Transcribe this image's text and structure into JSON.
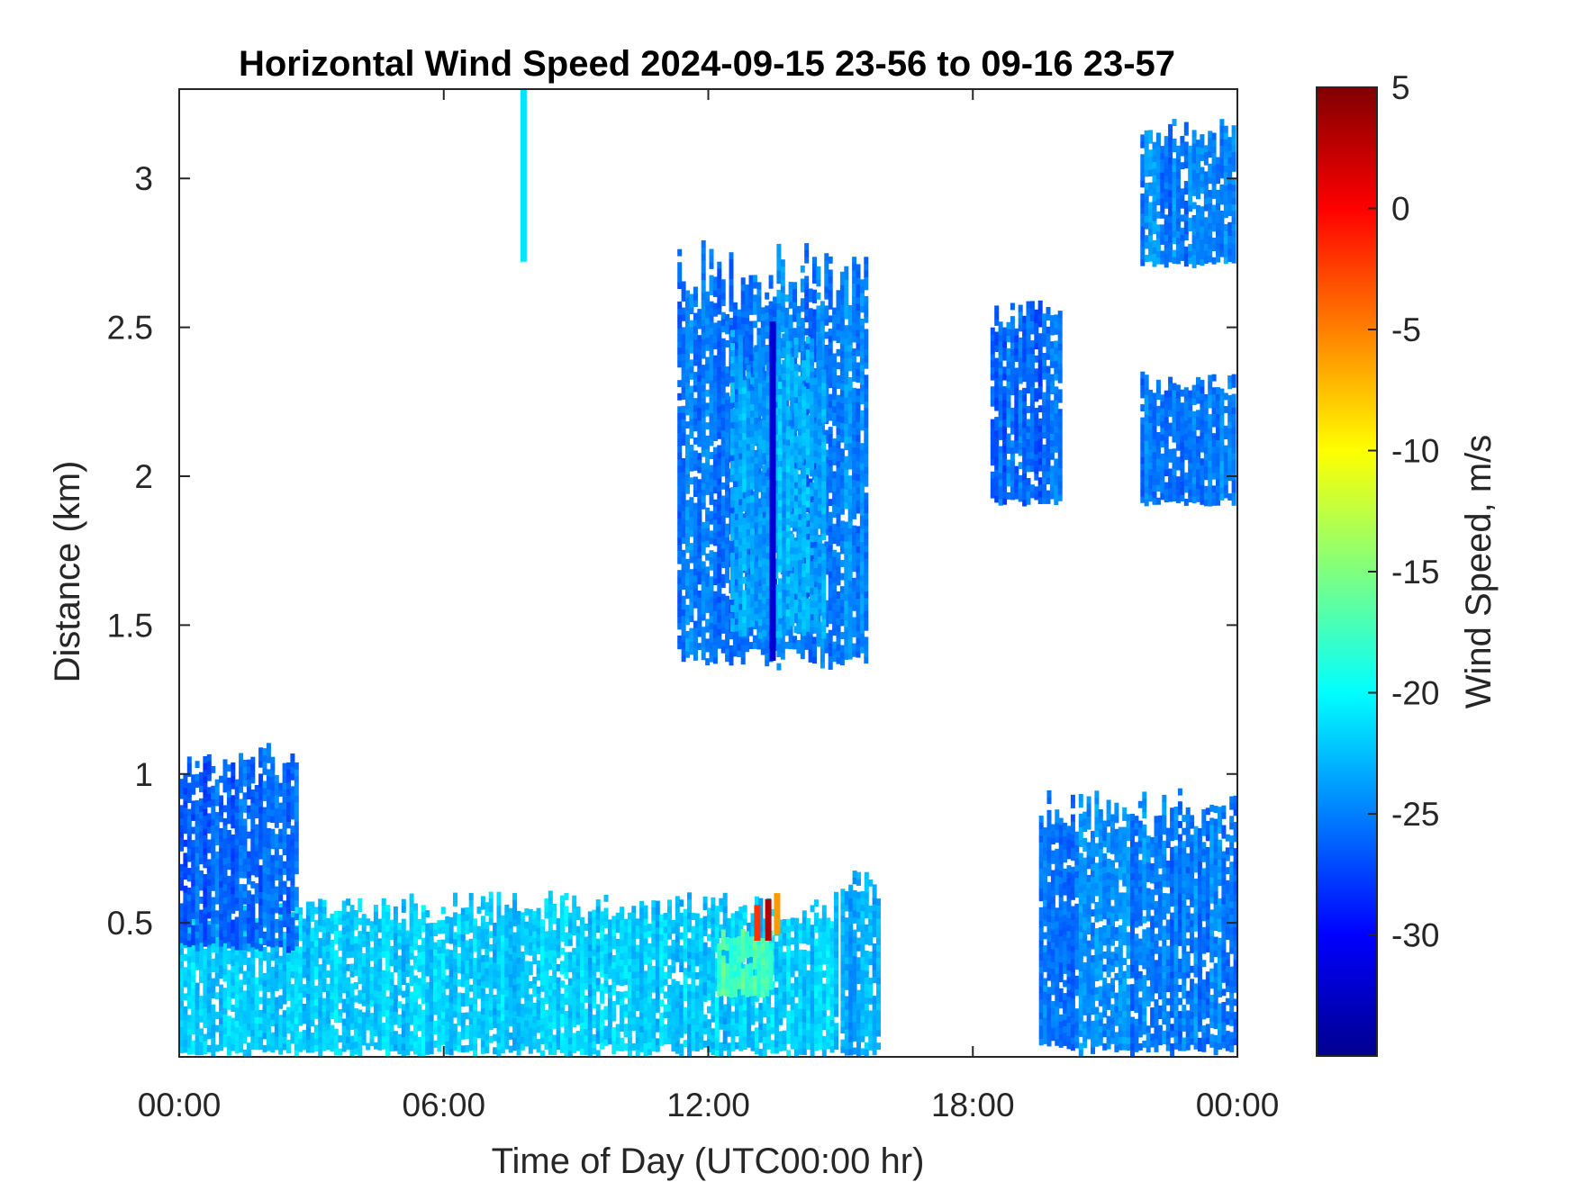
{
  "chart_data": {
    "type": "heatmap",
    "title": "Horizontal Wind Speed 2024-09-15 23-56 to 09-16 23-57",
    "xlabel": "Time of Day (UTC00:00 hr)",
    "ylabel": "Distance (km)",
    "xlim": [
      0,
      24
    ],
    "ylim": [
      0.05,
      3.3
    ],
    "x_ticks": [
      {
        "value": 0,
        "label": "00:00"
      },
      {
        "value": 6,
        "label": "06:00"
      },
      {
        "value": 12,
        "label": "12:00"
      },
      {
        "value": 18,
        "label": "18:00"
      },
      {
        "value": 24,
        "label": "00:00"
      }
    ],
    "y_ticks": [
      {
        "value": 0.5,
        "label": "0.5"
      },
      {
        "value": 1,
        "label": "1"
      },
      {
        "value": 1.5,
        "label": "1.5"
      },
      {
        "value": 2,
        "label": "2"
      },
      {
        "value": 2.5,
        "label": "2.5"
      },
      {
        "value": 3,
        "label": "3"
      }
    ],
    "colorbar": {
      "label": "Wind Speed, m/s",
      "colormap": "jet",
      "clim": [
        -35,
        5
      ],
      "ticks": [
        {
          "value": 5,
          "label": "5"
        },
        {
          "value": 0,
          "label": "0"
        },
        {
          "value": -5,
          "label": "-5"
        },
        {
          "value": -10,
          "label": "-10"
        },
        {
          "value": -15,
          "label": "-15"
        },
        {
          "value": -20,
          "label": "-20"
        },
        {
          "value": -25,
          "label": "-25"
        },
        {
          "value": -30,
          "label": "-30"
        }
      ]
    },
    "regions": [
      {
        "name": "boundary-layer-main",
        "t0": 0,
        "t1": 14.9,
        "h0": 0.05,
        "h1": 0.6,
        "value": -22
      },
      {
        "name": "boundary-layer-warm-patch",
        "t0": 12.2,
        "t1": 13.5,
        "h0": 0.25,
        "h1": 0.48,
        "value": -17
      },
      {
        "name": "early-morning-layer",
        "t0": 0,
        "t1": 2.7,
        "h0": 0.4,
        "h1": 1.1,
        "value": -26
      },
      {
        "name": "cloud-layer-midday",
        "t0": 11.3,
        "t1": 15.6,
        "h0": 1.35,
        "h1": 2.8,
        "value": -25
      },
      {
        "name": "cloud-layer-core",
        "t0": 12.5,
        "t1": 14.7,
        "h0": 1.45,
        "h1": 2.5,
        "value": -23
      },
      {
        "name": "afternoon-low-column",
        "t0": 15.0,
        "t1": 15.9,
        "h0": 0.05,
        "h1": 0.68,
        "value": -23
      },
      {
        "name": "evening-low-layer",
        "t0": 19.5,
        "t1": 24,
        "h0": 0.05,
        "h1": 0.95,
        "value": -25
      },
      {
        "name": "late-night-high-layer",
        "t0": 21.8,
        "t1": 24,
        "h0": 2.7,
        "h1": 3.2,
        "value": -25
      },
      {
        "name": "late-night-mid-layer",
        "t0": 21.8,
        "t1": 24,
        "h0": 1.9,
        "h1": 2.35,
        "value": -25
      },
      {
        "name": "evening-mid-layer",
        "t0": 18.4,
        "t1": 20.0,
        "h0": 1.9,
        "h1": 2.6,
        "value": -26
      }
    ],
    "columns": [
      {
        "name": "early-high-streak",
        "t": 7.8,
        "h0": 2.72,
        "h1": 3.3,
        "value": -21
      },
      {
        "name": "strong-core-streak",
        "t": 13.45,
        "h0": 1.38,
        "h1": 2.52,
        "value": -32
      },
      {
        "name": "warm-streak-1",
        "t": 13.1,
        "h0": 0.44,
        "h1": 0.56,
        "value": -2
      },
      {
        "name": "warm-streak-2",
        "t": 13.35,
        "h0": 0.44,
        "h1": 0.58,
        "value": 3
      },
      {
        "name": "warm-streak-3",
        "t": 13.55,
        "h0": 0.46,
        "h1": 0.6,
        "value": -6
      }
    ]
  }
}
